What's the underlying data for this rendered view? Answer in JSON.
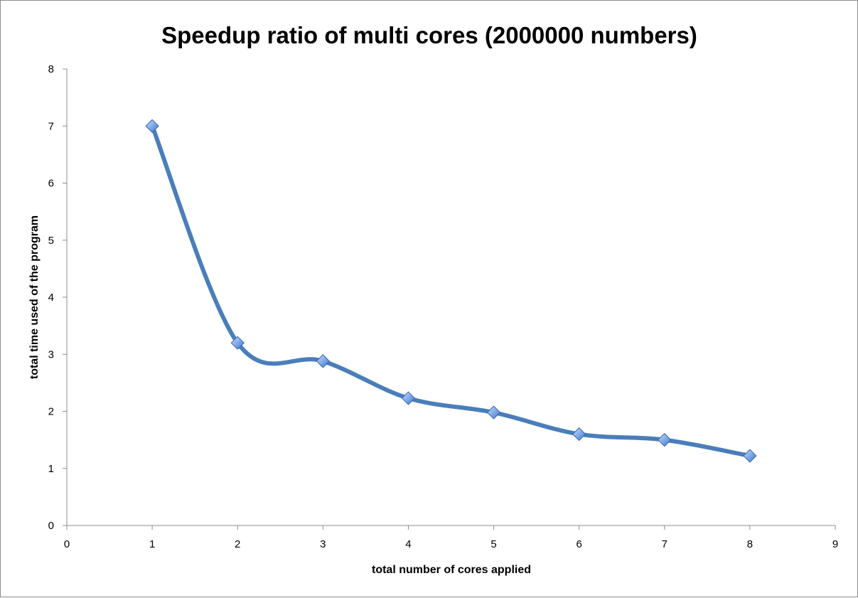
{
  "chart_data": {
    "type": "line",
    "title": "Speedup ratio of multi cores (2000000 numbers)",
    "xlabel": "total number of cores applied",
    "ylabel": "total time used of the program",
    "xlim": [
      0,
      9
    ],
    "ylim": [
      0,
      8
    ],
    "x_ticks": [
      "0",
      "1",
      "2",
      "3",
      "4",
      "5",
      "6",
      "7",
      "8",
      "9"
    ],
    "y_ticks": [
      "0",
      "1",
      "2",
      "3",
      "4",
      "5",
      "6",
      "7",
      "8"
    ],
    "grid": false,
    "legend": "none",
    "smoothed": true,
    "marker": "diamond",
    "series": [
      {
        "x": [
          1,
          2,
          3,
          4,
          5,
          6,
          7,
          8
        ],
        "values": [
          7.0,
          3.2,
          2.88,
          2.23,
          1.98,
          1.6,
          1.5,
          1.22
        ],
        "color": "#4a7ebb",
        "marker_color": "#7aa6e8"
      }
    ]
  }
}
